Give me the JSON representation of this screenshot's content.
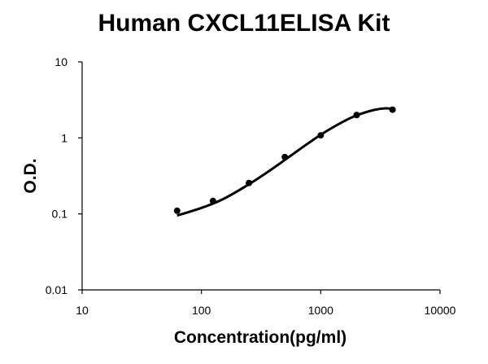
{
  "chart_data": {
    "type": "scatter",
    "title": "Human CXCL11ELISA Kit",
    "xlabel": "Concentration(pg/ml)",
    "ylabel": "O.D.",
    "x_scale": "log",
    "y_scale": "log",
    "xlim": [
      10,
      10000
    ],
    "ylim": [
      0.01,
      10
    ],
    "x_ticks": [
      "10",
      "100",
      "1000",
      "10000"
    ],
    "y_ticks": [
      "0.01",
      "0.1",
      "1",
      "10"
    ],
    "grid": false,
    "legend": "none",
    "series": [
      {
        "points": [
          {
            "x": 62.5,
            "y": 0.11
          },
          {
            "x": 125,
            "y": 0.148
          },
          {
            "x": 250,
            "y": 0.255
          },
          {
            "x": 500,
            "y": 0.56
          },
          {
            "x": 1000,
            "y": 1.08
          },
          {
            "x": 2000,
            "y": 2.0
          },
          {
            "x": 4000,
            "y": 2.35
          }
        ],
        "fit_curve": [
          {
            "x": 62.5,
            "y": 0.095
          },
          {
            "x": 100,
            "y": 0.12
          },
          {
            "x": 150,
            "y": 0.155
          },
          {
            "x": 250,
            "y": 0.245
          },
          {
            "x": 400,
            "y": 0.4
          },
          {
            "x": 600,
            "y": 0.63
          },
          {
            "x": 1000,
            "y": 1.1
          },
          {
            "x": 1500,
            "y": 1.6
          },
          {
            "x": 2000,
            "y": 1.98
          },
          {
            "x": 2800,
            "y": 2.33
          },
          {
            "x": 3500,
            "y": 2.45
          },
          {
            "x": 4000,
            "y": 2.4
          }
        ]
      }
    ],
    "colors": {
      "points": "#000000",
      "line": "#000000",
      "axis": "#000000"
    }
  }
}
